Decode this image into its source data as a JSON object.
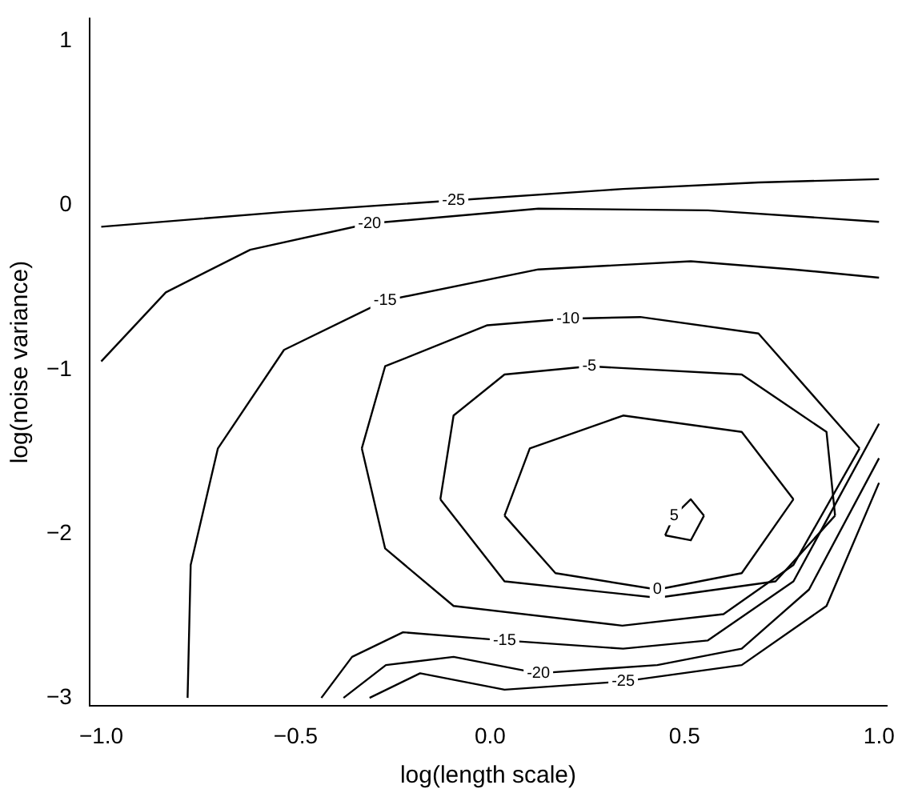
{
  "chart_data": {
    "type": "line",
    "xlabel": "log(length scale)",
    "ylabel": "log(noise variance)",
    "xlim": [
      -1.03,
      1.02
    ],
    "ylim": [
      -3.05,
      1.14
    ],
    "xticks": [
      {
        "value": -1,
        "label": "−1.0"
      },
      {
        "value": -0.5,
        "label": "−0.5"
      },
      {
        "value": 0,
        "label": "0.0"
      },
      {
        "value": 0.5,
        "label": "0.5"
      },
      {
        "value": 1,
        "label": "1.0"
      }
    ],
    "yticks": [
      {
        "value": -3,
        "label": "−3"
      },
      {
        "value": -2,
        "label": "−2"
      },
      {
        "value": -1,
        "label": "−1"
      },
      0,
      1
    ],
    "grid": false,
    "legend": false,
    "marker": "none",
    "line_style": "solid",
    "series": [
      {
        "name": "-25",
        "color": "#000000",
        "x": [
          -1,
          -0.53,
          -0.094,
          0.342,
          0.69,
          1
        ],
        "values": [
          -0.13,
          -0.04,
          0.03,
          0.1,
          0.14,
          0.16
        ]
      },
      {
        "name": "-20",
        "color": "#000000",
        "x": [
          -1,
          -0.834,
          -0.617,
          -0.31,
          0.124,
          0.56,
          1
        ],
        "values": [
          -0.95,
          -0.53,
          -0.27,
          -0.11,
          -0.02,
          -0.03,
          -0.1
        ]
      },
      {
        "name": "-15",
        "color": "#000000",
        "x": [
          -0.778,
          -0.77,
          -0.7,
          -0.53,
          -0.27,
          0.124,
          0.516,
          0.78,
          1
        ],
        "values": [
          -3,
          -2.19,
          -1.48,
          -0.88,
          -0.58,
          -0.39,
          -0.34,
          -0.39,
          -0.44
        ]
      },
      {
        "name": "-10",
        "color": "#000000",
        "x": [
          -0.33,
          -0.27,
          -0.007,
          0.2,
          0.386,
          0.69,
          0.95
        ],
        "values": [
          -1.48,
          -0.98,
          -0.73,
          -0.69,
          -0.68,
          -0.78,
          -1.48
        ]
      },
      {
        "color": "#000000",
        "x": [
          -0.33,
          -0.27,
          -0.094,
          0.34,
          0.6,
          0.78,
          0.95
        ],
        "values": [
          -1.48,
          -2.09,
          -2.44,
          -2.56,
          -2.49,
          -2.19,
          -1.48
        ]
      },
      {
        "name": "-5",
        "color": "#000000",
        "x": [
          -0.128,
          -0.094,
          0.037,
          0.255,
          0.647,
          0.865,
          0.887
        ],
        "values": [
          -1.79,
          -1.28,
          -1.03,
          -0.98,
          -1.03,
          -1.38,
          -1.89
        ]
      },
      {
        "color": "#000000",
        "x": [
          -0.128,
          0.037,
          0.43,
          0.734,
          0.887
        ],
        "values": [
          -1.79,
          -2.29,
          -2.39,
          -2.29,
          -1.89
        ]
      },
      {
        "color": "#000000",
        "x": [
          0.037,
          0.102,
          0.342,
          0.647,
          0.78
        ],
        "values": [
          -1.89,
          -1.48,
          -1.28,
          -1.38,
          -1.79
        ]
      },
      {
        "name": "0",
        "color": "#000000",
        "x": [
          0.037,
          0.168,
          0.43,
          0.647,
          0.78
        ],
        "values": [
          -1.89,
          -2.24,
          -2.34,
          -2.24,
          -1.79
        ]
      },
      {
        "name": "5",
        "color": "#000000",
        "x": [
          0.45,
          0.473,
          0.516,
          0.55
        ],
        "values": [
          -2.01,
          -1.89,
          -1.79,
          -1.89
        ]
      },
      {
        "color": "#000000",
        "x": [
          0.45,
          0.516,
          0.55
        ],
        "values": [
          -2.01,
          -2.04,
          -1.89
        ]
      },
      {
        "name": "-15",
        "color": "#000000",
        "x": [
          -0.434,
          -0.355,
          -0.224,
          0.037,
          0.342,
          0.56,
          0.78,
          1
        ],
        "values": [
          -3,
          -2.75,
          -2.6,
          -2.65,
          -2.7,
          -2.65,
          -2.29,
          -1.33
        ]
      },
      {
        "name": "-20",
        "color": "#000000",
        "x": [
          -0.377,
          -0.268,
          -0.094,
          0.124,
          0.43,
          0.647,
          0.82,
          1
        ],
        "values": [
          -3,
          -2.8,
          -2.75,
          -2.85,
          -2.8,
          -2.7,
          -2.34,
          -1.54
        ]
      },
      {
        "name": "-25",
        "color": "#000000",
        "x": [
          -0.31,
          -0.18,
          0.037,
          0.342,
          0.647,
          0.865,
          1
        ],
        "values": [
          -3,
          -2.85,
          -2.95,
          -2.9,
          -2.8,
          -2.44,
          -1.69
        ]
      }
    ]
  }
}
